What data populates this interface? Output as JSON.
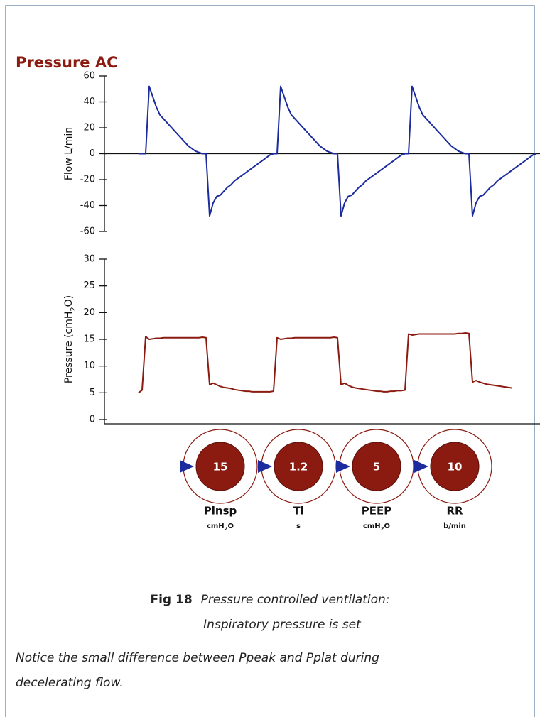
{
  "title": "Pressure AC",
  "chart_data": [
    {
      "type": "line",
      "y_label": "Flow L/min",
      "ylim": [
        -60,
        60
      ],
      "yticks": [
        -60,
        -40,
        -20,
        0,
        20,
        40,
        60
      ],
      "zero_line": true,
      "series": [
        {
          "name": "Flow",
          "color": "#1c2c9e",
          "values": [
            0,
            0,
            0,
            52,
            44,
            36,
            30,
            27,
            24,
            21,
            18,
            15,
            12,
            9,
            6,
            4,
            2,
            1,
            0,
            0,
            -48,
            -38,
            -33,
            -32,
            -29,
            -26,
            -24,
            -21,
            -19,
            -17,
            -15,
            -13,
            -11,
            -9,
            -7,
            -5,
            -3,
            -1,
            0,
            0,
            52,
            44,
            36,
            30,
            27,
            24,
            21,
            18,
            15,
            12,
            9,
            6,
            4,
            2,
            1,
            0,
            0,
            -48,
            -38,
            -33,
            -32,
            -29,
            -26,
            -24,
            -21,
            -19,
            -17,
            -15,
            -13,
            -11,
            -9,
            -7,
            -5,
            -3,
            -1,
            0,
            0,
            52,
            44,
            36,
            30,
            27,
            24,
            21,
            18,
            15,
            12,
            9,
            6,
            4,
            2,
            1,
            0,
            0,
            -48,
            -38,
            -33,
            -32,
            -29,
            -26,
            -24,
            -21,
            -19,
            -17,
            -15,
            -13,
            -11,
            -9,
            -7,
            -5,
            -3,
            -1,
            0
          ]
        }
      ]
    },
    {
      "type": "line",
      "y_label": {
        "text": "Pressure (cmH",
        "sub": "2",
        "end": "O)"
      },
      "ylim": [
        0,
        30
      ],
      "yticks": [
        0,
        5,
        10,
        15,
        20,
        25,
        30
      ],
      "zero_line": false,
      "series": [
        {
          "name": "Pressure",
          "color": "#8b1a10",
          "values": [
            5,
            5.5,
            15.5,
            15,
            15.1,
            15.2,
            15.2,
            15.3,
            15.3,
            15.3,
            15.3,
            15.3,
            15.3,
            15.3,
            15.3,
            15.3,
            15.3,
            15.3,
            15.4,
            15.3,
            6.5,
            6.8,
            6.5,
            6.2,
            6,
            5.9,
            5.8,
            5.6,
            5.5,
            5.4,
            5.3,
            5.3,
            5.2,
            5.2,
            5.2,
            5.2,
            5.2,
            5.2,
            5.3,
            15.3,
            15,
            15.1,
            15.2,
            15.2,
            15.3,
            15.3,
            15.3,
            15.3,
            15.3,
            15.3,
            15.3,
            15.3,
            15.3,
            15.3,
            15.3,
            15.4,
            15.3,
            6.5,
            6.8,
            6.4,
            6.1,
            5.9,
            5.8,
            5.7,
            5.6,
            5.5,
            5.4,
            5.3,
            5.3,
            5.2,
            5.2,
            5.3,
            5.3,
            5.4,
            5.4,
            5.5,
            16,
            15.8,
            15.9,
            16,
            16,
            16,
            16,
            16,
            16,
            16,
            16,
            16,
            16,
            16,
            16.1,
            16.1,
            16.2,
            16.1,
            7,
            7.3,
            7,
            6.8,
            6.6,
            6.5,
            6.4,
            6.3,
            6.2,
            6.1,
            6,
            5.9,
            null,
            null,
            null,
            null,
            null,
            null,
            null
          ]
        }
      ]
    }
  ],
  "dials": [
    {
      "value": 15,
      "name": "Pinsp",
      "unit": {
        "text": "cmH",
        "sub": "2",
        "end": "O"
      }
    },
    {
      "value": 1.2,
      "name": "Ti",
      "unit": {
        "text": "s"
      }
    },
    {
      "value": 5,
      "name": "PEEP",
      "unit": {
        "text": "cmH",
        "sub": "2",
        "end": "O"
      }
    },
    {
      "value": 10,
      "name": "RR",
      "unit": {
        "text": "b/min"
      }
    }
  ],
  "caption": {
    "label": "Fig 18",
    "lines": [
      "Pressure controlled ventilation:",
      "Inspiratory pressure is set"
    ]
  },
  "note": [
    "Notice the small difference between Ppeak and Pplat during",
    "decelerating flow."
  ]
}
